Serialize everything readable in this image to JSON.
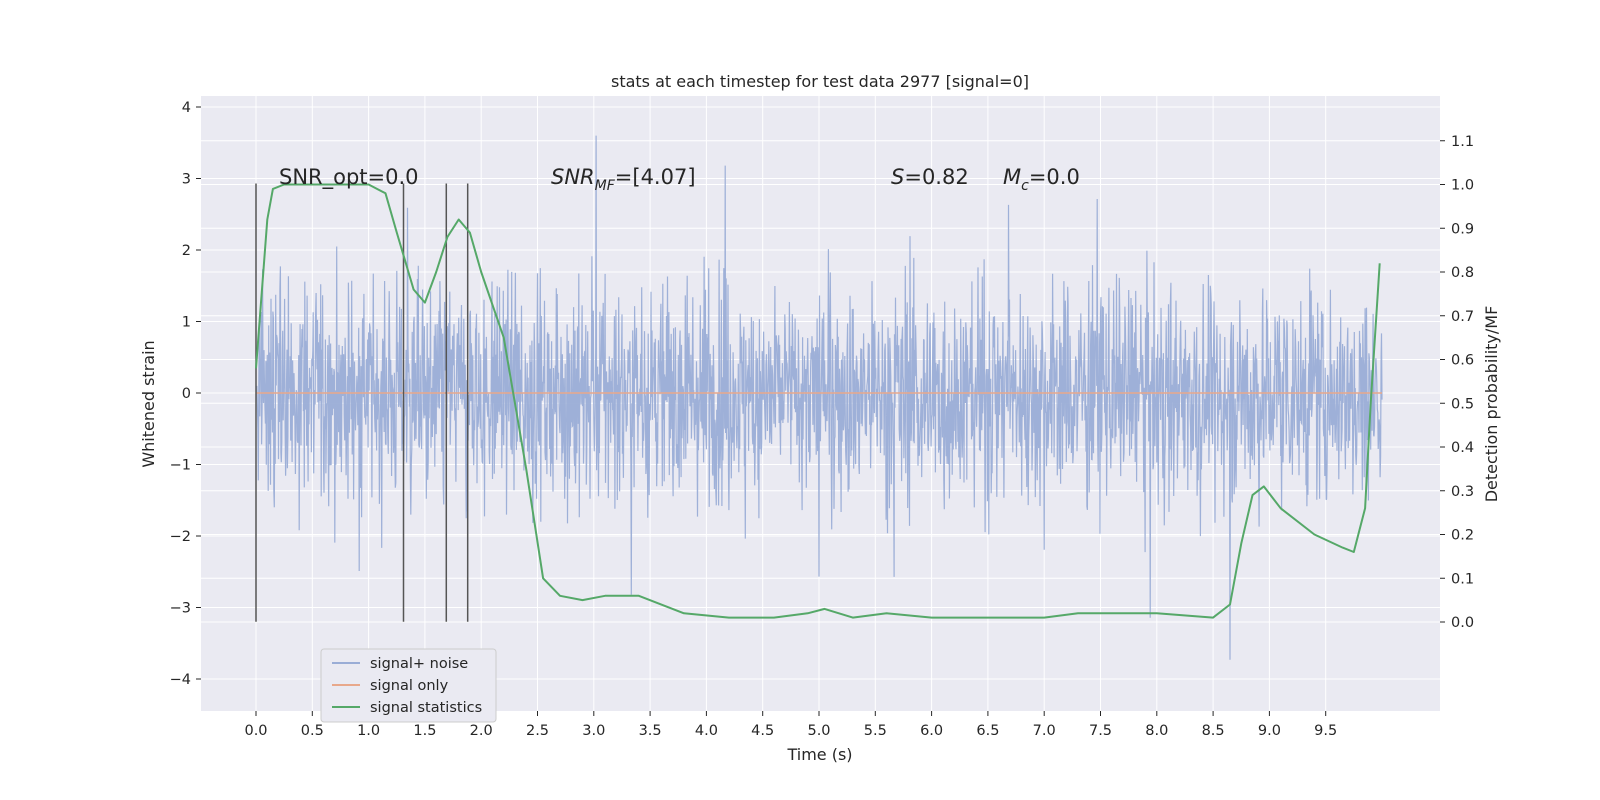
{
  "chart_data": {
    "type": "line",
    "title": "stats at each timestep for test data 2977 [signal=0]",
    "xlabel": "Time (s)",
    "ylabel": "Whitened strain",
    "y2label": "Detection probability/MF",
    "xlim": [
      -0.48,
      10.5
    ],
    "ylim": [
      -4.35,
      4.15
    ],
    "y2lim": [
      -0.2,
      1.2
    ],
    "xticks": [
      0.0,
      0.5,
      1.0,
      1.5,
      2.0,
      2.5,
      3.0,
      3.5,
      4.0,
      4.5,
      5.0,
      5.5,
      6.0,
      6.5,
      7.0,
      7.5,
      8.0,
      8.5,
      9.0,
      9.5
    ],
    "xtick_labels": [
      "0.0",
      "0.5",
      "1.0",
      "1.5",
      "2.0",
      "2.5",
      "3.0",
      "3.5",
      "4.0",
      "4.5",
      "5.0",
      "5.5",
      "6.0",
      "6.5",
      "7.0",
      "7.5",
      "8.0",
      "8.5",
      "9.0",
      "9.5"
    ],
    "yticks": [
      -4,
      -3,
      -2,
      -1,
      0,
      1,
      2,
      3,
      4
    ],
    "ytick_labels": [
      "−4",
      "−3",
      "−2",
      "−1",
      "0",
      "1",
      "2",
      "3",
      "4"
    ],
    "y2ticks": [
      0.0,
      0.1,
      0.2,
      0.3,
      0.4,
      0.5,
      0.6,
      0.7,
      0.8,
      0.9,
      1.0,
      1.1
    ],
    "y2tick_labels": [
      "0.0",
      "0.1",
      "0.2",
      "0.3",
      "0.4",
      "0.5",
      "0.6",
      "0.7",
      "0.8",
      "0.9",
      "1.0",
      "1.1"
    ],
    "grid": true,
    "legend_position": "lower-left",
    "annotations": {
      "snr_opt": "SNR_opt=0.0",
      "snr_mf_main": "SNR",
      "snr_mf_sub": "MF",
      "snr_mf_value": "=[4.07]",
      "s_main": "S",
      "s_value": "=0.82",
      "mc_main": "M",
      "mc_sub": "c",
      "mc_value": "=0.0"
    },
    "vertical_markers_x": [
      0.0,
      1.31,
      1.69,
      1.88
    ],
    "series": [
      {
        "name": "signal+ noise",
        "color": "#9aadd6",
        "axis": "left",
        "description_range": [
          -2.0,
          2.0
        ],
        "x_range": [
          0.0,
          10.0
        ],
        "amplitude_envelope": 1.6
      },
      {
        "name": "signal only",
        "color": "#e8a88b",
        "axis": "left",
        "x": [
          0.0,
          10.0
        ],
        "y": [
          0.0,
          0.0
        ]
      },
      {
        "name": "signal statistics",
        "color": "#55a868",
        "axis": "right",
        "x": [
          0.0,
          0.1,
          0.15,
          0.25,
          0.5,
          0.8,
          1.0,
          1.15,
          1.25,
          1.4,
          1.5,
          1.6,
          1.7,
          1.8,
          1.9,
          2.0,
          2.2,
          2.4,
          2.55,
          2.7,
          2.9,
          3.1,
          3.4,
          3.8,
          4.2,
          4.6,
          4.9,
          5.05,
          5.3,
          5.6,
          6.0,
          6.3,
          6.6,
          7.0,
          7.3,
          7.6,
          8.0,
          8.5,
          8.65,
          8.75,
          8.85,
          8.95,
          9.1,
          9.4,
          9.65,
          9.75,
          9.85,
          9.9,
          9.98
        ],
        "y": [
          0.58,
          0.92,
          0.99,
          1.0,
          1.0,
          1.0,
          1.0,
          0.98,
          0.89,
          0.76,
          0.73,
          0.8,
          0.88,
          0.92,
          0.89,
          0.8,
          0.65,
          0.35,
          0.1,
          0.06,
          0.05,
          0.06,
          0.06,
          0.02,
          0.01,
          0.01,
          0.02,
          0.03,
          0.01,
          0.02,
          0.01,
          0.01,
          0.01,
          0.01,
          0.02,
          0.02,
          0.02,
          0.01,
          0.04,
          0.18,
          0.29,
          0.31,
          0.26,
          0.2,
          0.17,
          0.16,
          0.26,
          0.5,
          0.82
        ]
      }
    ]
  }
}
